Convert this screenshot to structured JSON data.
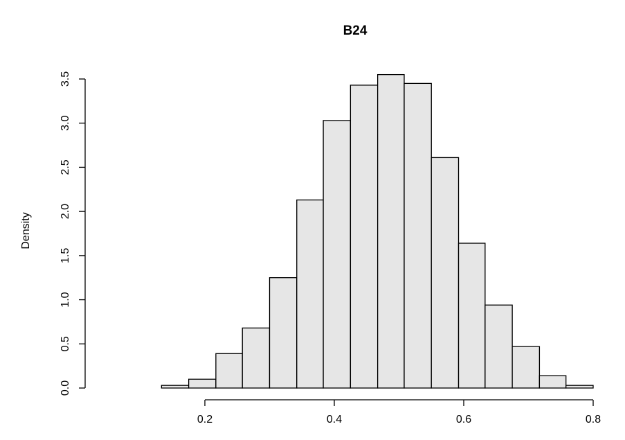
{
  "chart_data": {
    "type": "bar",
    "title": "B24",
    "xlabel": "",
    "ylabel": "Density",
    "xlim": [
      0.04,
      0.84
    ],
    "ylim": [
      0,
      3.6
    ],
    "bin_width": 0.04166,
    "bins": [
      {
        "x0": 0.05,
        "x1": 0.092,
        "density": 0.0
      },
      {
        "x0": 0.092,
        "x1": 0.133,
        "density": 0.0
      },
      {
        "x0": 0.133,
        "x1": 0.175,
        "density": 0.03
      },
      {
        "x0": 0.175,
        "x1": 0.217,
        "density": 0.1
      },
      {
        "x0": 0.217,
        "x1": 0.258,
        "density": 0.39
      },
      {
        "x0": 0.258,
        "x1": 0.3,
        "density": 0.68
      },
      {
        "x0": 0.3,
        "x1": 0.342,
        "density": 1.25
      },
      {
        "x0": 0.342,
        "x1": 0.383,
        "density": 2.13
      },
      {
        "x0": 0.383,
        "x1": 0.425,
        "density": 3.03
      },
      {
        "x0": 0.425,
        "x1": 0.467,
        "density": 3.43
      },
      {
        "x0": 0.467,
        "x1": 0.508,
        "density": 3.55
      },
      {
        "x0": 0.508,
        "x1": 0.55,
        "density": 3.45
      },
      {
        "x0": 0.55,
        "x1": 0.592,
        "density": 2.61
      },
      {
        "x0": 0.592,
        "x1": 0.633,
        "density": 1.64
      },
      {
        "x0": 0.633,
        "x1": 0.675,
        "density": 0.94
      },
      {
        "x0": 0.675,
        "x1": 0.717,
        "density": 0.47
      },
      {
        "x0": 0.717,
        "x1": 0.758,
        "density": 0.14
      },
      {
        "x0": 0.758,
        "x1": 0.8,
        "density": 0.03
      },
      {
        "x0": 0.8,
        "x1": 0.842,
        "density": 0.0
      }
    ],
    "x_ticks": [
      0.2,
      0.4,
      0.6,
      0.8
    ],
    "x_tick_labels": [
      "0.2",
      "0.4",
      "0.6",
      "0.8"
    ],
    "y_ticks": [
      0.0,
      0.5,
      1.0,
      1.5,
      2.0,
      2.5,
      3.0,
      3.5
    ],
    "y_tick_labels": [
      "0.0",
      "0.5",
      "1.0",
      "1.5",
      "2.0",
      "2.5",
      "3.0",
      "3.5"
    ],
    "grid": false,
    "legend": "none"
  }
}
